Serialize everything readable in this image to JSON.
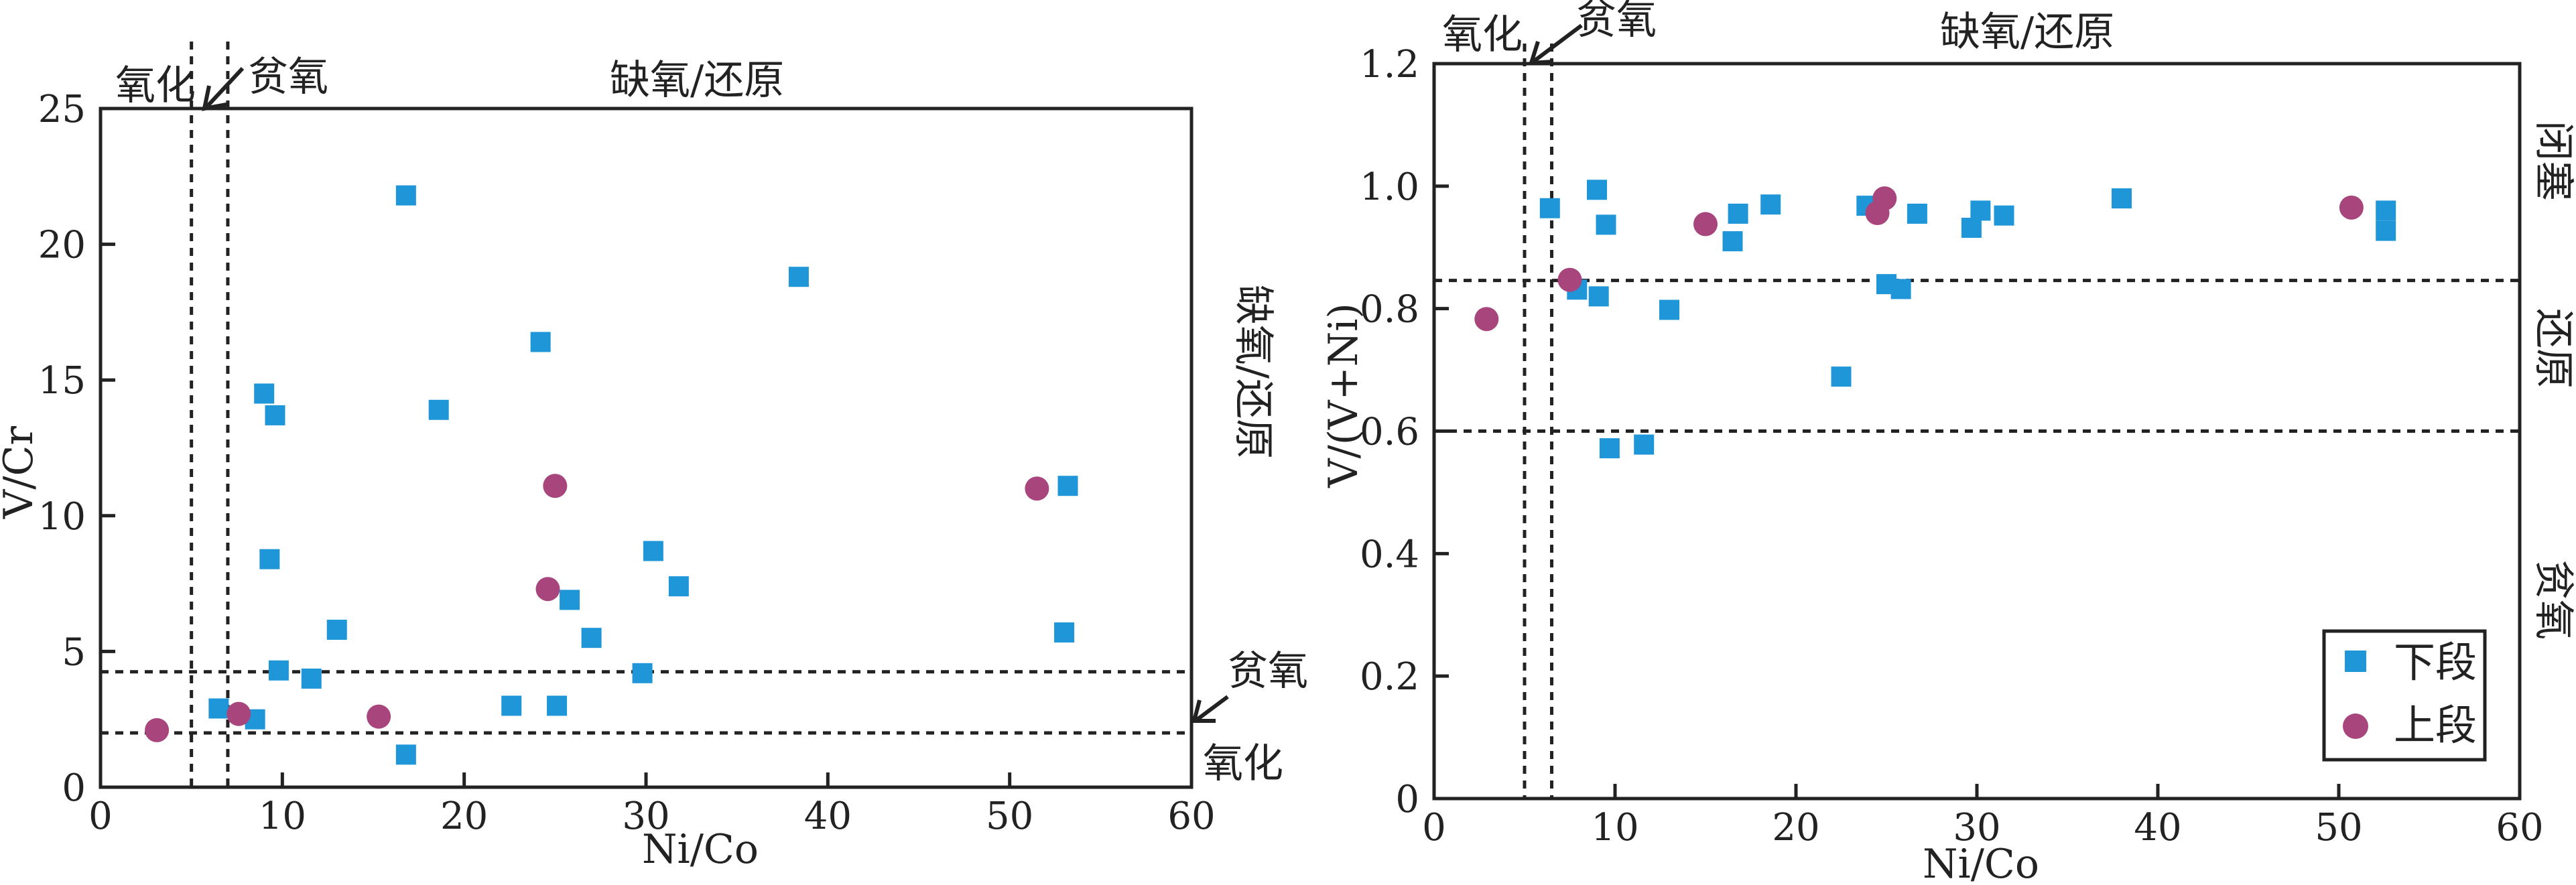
{
  "colors": {
    "lower": "#1f96d8",
    "upper": "#a8457c",
    "line": "#222222"
  },
  "legend": {
    "lower_label": "下段",
    "upper_label": "上段"
  },
  "chart_data": [
    {
      "type": "scatter",
      "xlabel": "Ni/Co",
      "ylabel": "V/Cr",
      "xlim": [
        0,
        60
      ],
      "ylim": [
        0,
        25
      ],
      "xticks": [
        0,
        10,
        20,
        30,
        40,
        50,
        60
      ],
      "yticks": [
        0,
        5,
        10,
        15,
        20,
        25
      ],
      "x_thresholds": [
        5,
        7
      ],
      "y_thresholds": [
        2,
        4.25
      ],
      "zone_labels": {
        "top_oxic": "氧化",
        "top_dysoxic": "贫氧",
        "top_anoxic": "缺氧/还原",
        "right_anoxic": "缺氧/还原",
        "right_dysoxic": "贫氧",
        "right_oxic": "氧化"
      },
      "series": [
        {
          "name": "下段",
          "marker": "square",
          "points": [
            [
              6.5,
              2.9
            ],
            [
              8.5,
              2.5
            ],
            [
              9.0,
              14.5
            ],
            [
              9.3,
              8.4
            ],
            [
              9.6,
              13.7
            ],
            [
              9.8,
              4.3
            ],
            [
              11.6,
              4.0
            ],
            [
              13.0,
              5.8
            ],
            [
              16.8,
              21.8
            ],
            [
              16.8,
              1.2
            ],
            [
              18.6,
              13.9
            ],
            [
              22.6,
              3.0
            ],
            [
              24.2,
              16.4
            ],
            [
              25.1,
              3.0
            ],
            [
              25.8,
              6.9
            ],
            [
              27.0,
              5.5
            ],
            [
              29.8,
              4.2
            ],
            [
              30.4,
              8.7
            ],
            [
              31.8,
              7.4
            ],
            [
              38.4,
              18.8
            ],
            [
              53.2,
              11.1
            ],
            [
              53.0,
              5.7
            ]
          ]
        },
        {
          "name": "上段",
          "marker": "circle",
          "points": [
            [
              3.1,
              2.1
            ],
            [
              7.6,
              2.7
            ],
            [
              15.3,
              2.6
            ],
            [
              24.6,
              7.3
            ],
            [
              25.0,
              11.1
            ],
            [
              51.5,
              11.0
            ]
          ]
        }
      ]
    },
    {
      "type": "scatter",
      "xlabel": "Ni/Co",
      "ylabel": "V/(V+Ni)",
      "xlim": [
        0,
        60
      ],
      "ylim": [
        0,
        1.2
      ],
      "xticks": [
        0,
        10,
        20,
        30,
        40,
        50,
        60
      ],
      "yticks": [
        "0",
        "0.2",
        "0.4",
        "0.6",
        "0.8",
        "1.0",
        "1.2"
      ],
      "x_thresholds": [
        5,
        6.5
      ],
      "y_thresholds": [
        0.6,
        0.846
      ],
      "zone_labels": {
        "top_oxic": "氧化",
        "top_dysoxic": "贫氧",
        "top_anoxic": "缺氧/还原",
        "right_closed": "闭塞",
        "right_reduced": "还原",
        "right_dysoxic": "贫氧"
      },
      "legend_position": "bottom-right",
      "series": [
        {
          "name": "下段",
          "marker": "square",
          "points": [
            [
              6.4,
              0.964
            ],
            [
              7.9,
              0.831
            ],
            [
              9.0,
              0.994
            ],
            [
              9.1,
              0.82
            ],
            [
              9.5,
              0.937
            ],
            [
              9.7,
              0.572
            ],
            [
              11.6,
              0.578
            ],
            [
              13.0,
              0.798
            ],
            [
              16.5,
              0.91
            ],
            [
              16.8,
              0.955
            ],
            [
              18.6,
              0.97
            ],
            [
              22.5,
              0.689
            ],
            [
              23.9,
              0.968
            ],
            [
              25.0,
              0.84
            ],
            [
              25.8,
              0.832
            ],
            [
              26.7,
              0.955
            ],
            [
              29.7,
              0.932
            ],
            [
              30.2,
              0.96
            ],
            [
              31.5,
              0.952
            ],
            [
              38.0,
              0.98
            ],
            [
              52.6,
              0.96
            ],
            [
              52.6,
              0.927
            ]
          ]
        },
        {
          "name": "上段",
          "marker": "circle",
          "points": [
            [
              2.9,
              0.783
            ],
            [
              7.5,
              0.847
            ],
            [
              15.0,
              0.938
            ],
            [
              24.5,
              0.956
            ],
            [
              24.9,
              0.98
            ],
            [
              50.7,
              0.965
            ]
          ]
        }
      ]
    }
  ]
}
